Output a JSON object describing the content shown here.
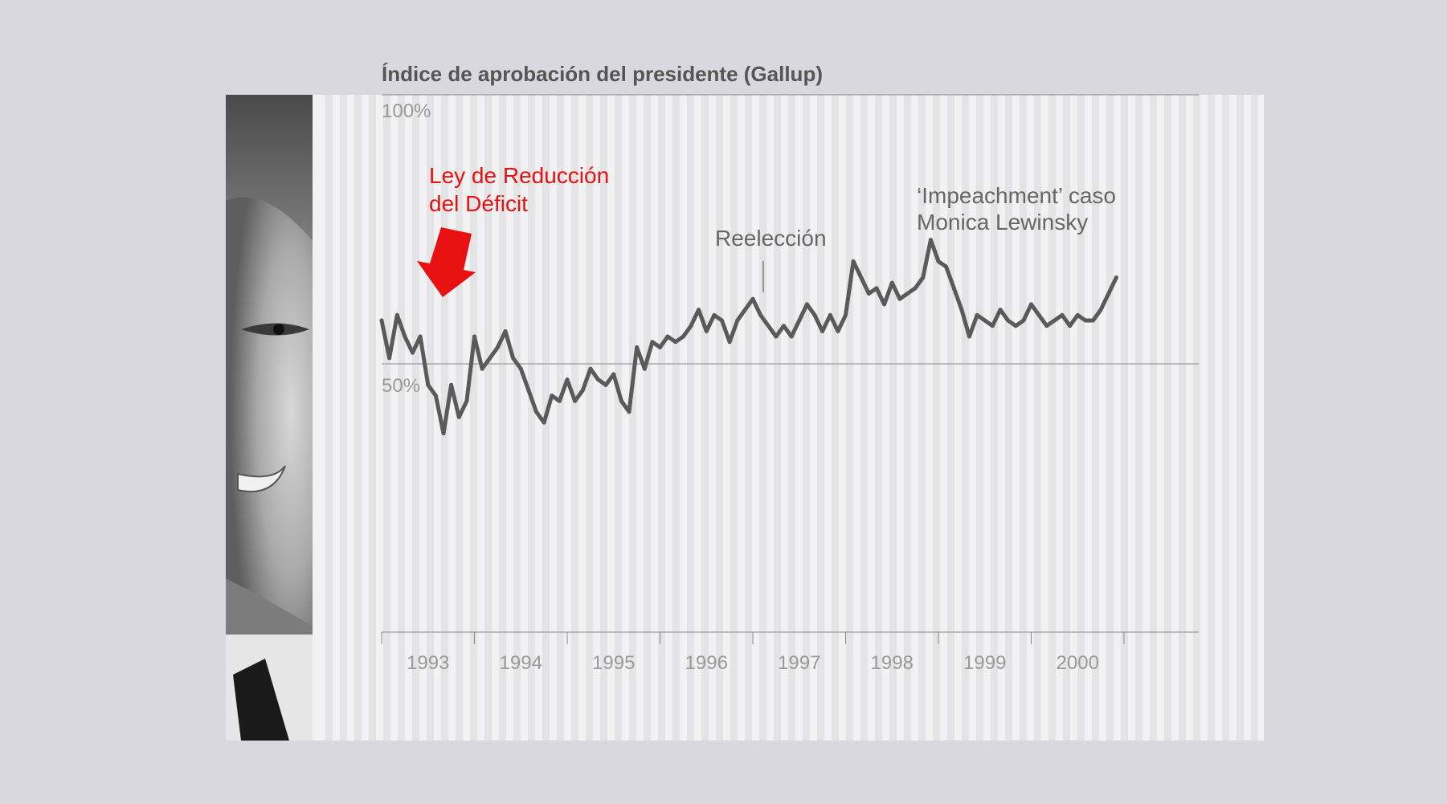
{
  "colors": {
    "background": "#d9d8de",
    "plot_background": "#f2f2f3",
    "stripe": "#e4e4e7",
    "line": "#5a5a5a",
    "highlight": "#e81010",
    "annotation": "#666666"
  },
  "chart_data": {
    "type": "line",
    "title": "Índice de aprobación del presidente (Gallup)",
    "xlabel": "",
    "ylabel": "",
    "ylim": [
      0,
      100
    ],
    "xlim": [
      "1993-01",
      "2001-12"
    ],
    "y_tick_labels": [
      {
        "value": 100,
        "label": "100%"
      },
      {
        "value": 50,
        "label": "50%"
      }
    ],
    "x_tick_labels": [
      "1993",
      "1994",
      "1995",
      "1996",
      "1997",
      "1998",
      "1999",
      "2000"
    ],
    "grid": "horizontal lines at 50% and 100%",
    "series": [
      {
        "values": [
          {
            "x": "1993-01",
            "y": 58
          },
          {
            "x": "1993-02",
            "y": 51
          },
          {
            "x": "1993-03",
            "y": 59
          },
          {
            "x": "1993-04",
            "y": 55
          },
          {
            "x": "1993-05",
            "y": 52
          },
          {
            "x": "1993-06",
            "y": 55
          },
          {
            "x": "1993-07",
            "y": 46
          },
          {
            "x": "1993-08",
            "y": 44
          },
          {
            "x": "1993-09",
            "y": 37
          },
          {
            "x": "1993-10",
            "y": 46
          },
          {
            "x": "1993-11",
            "y": 40
          },
          {
            "x": "1993-12",
            "y": 43
          },
          {
            "x": "1994-01",
            "y": 55
          },
          {
            "x": "1994-02",
            "y": 49
          },
          {
            "x": "1994-03",
            "y": 51
          },
          {
            "x": "1994-04",
            "y": 53
          },
          {
            "x": "1994-05",
            "y": 56
          },
          {
            "x": "1994-06",
            "y": 51
          },
          {
            "x": "1994-07",
            "y": 49
          },
          {
            "x": "1994-08",
            "y": 45
          },
          {
            "x": "1994-09",
            "y": 41
          },
          {
            "x": "1994-10",
            "y": 39
          },
          {
            "x": "1994-11",
            "y": 44
          },
          {
            "x": "1994-12",
            "y": 43
          },
          {
            "x": "1995-01",
            "y": 47
          },
          {
            "x": "1995-02",
            "y": 43
          },
          {
            "x": "1995-03",
            "y": 45
          },
          {
            "x": "1995-04",
            "y": 49
          },
          {
            "x": "1995-05",
            "y": 47
          },
          {
            "x": "1995-06",
            "y": 46
          },
          {
            "x": "1995-07",
            "y": 48
          },
          {
            "x": "1995-08",
            "y": 43
          },
          {
            "x": "1995-09",
            "y": 41
          },
          {
            "x": "1995-10",
            "y": 53
          },
          {
            "x": "1995-11",
            "y": 49
          },
          {
            "x": "1995-12",
            "y": 54
          },
          {
            "x": "1996-01",
            "y": 53
          },
          {
            "x": "1996-02",
            "y": 55
          },
          {
            "x": "1996-03",
            "y": 54
          },
          {
            "x": "1996-04",
            "y": 55
          },
          {
            "x": "1996-05",
            "y": 57
          },
          {
            "x": "1996-06",
            "y": 60
          },
          {
            "x": "1996-07",
            "y": 56
          },
          {
            "x": "1996-08",
            "y": 59
          },
          {
            "x": "1996-09",
            "y": 58
          },
          {
            "x": "1996-10",
            "y": 54
          },
          {
            "x": "1996-11",
            "y": 58
          },
          {
            "x": "1996-12",
            "y": 60
          },
          {
            "x": "1997-01",
            "y": 62
          },
          {
            "x": "1997-02",
            "y": 59
          },
          {
            "x": "1997-03",
            "y": 57
          },
          {
            "x": "1997-04",
            "y": 55
          },
          {
            "x": "1997-05",
            "y": 57
          },
          {
            "x": "1997-06",
            "y": 55
          },
          {
            "x": "1997-07",
            "y": 58
          },
          {
            "x": "1997-08",
            "y": 61
          },
          {
            "x": "1997-09",
            "y": 59
          },
          {
            "x": "1997-10",
            "y": 56
          },
          {
            "x": "1997-11",
            "y": 59
          },
          {
            "x": "1997-12",
            "y": 56
          },
          {
            "x": "1998-01",
            "y": 59
          },
          {
            "x": "1998-02",
            "y": 69
          },
          {
            "x": "1998-03",
            "y": 66
          },
          {
            "x": "1998-04",
            "y": 63
          },
          {
            "x": "1998-05",
            "y": 64
          },
          {
            "x": "1998-06",
            "y": 61
          },
          {
            "x": "1998-07",
            "y": 65
          },
          {
            "x": "1998-08",
            "y": 62
          },
          {
            "x": "1998-09",
            "y": 63
          },
          {
            "x": "1998-10",
            "y": 64
          },
          {
            "x": "1998-11",
            "y": 66
          },
          {
            "x": "1998-12",
            "y": 73
          },
          {
            "x": "1999-01",
            "y": 69
          },
          {
            "x": "1999-02",
            "y": 68
          },
          {
            "x": "1999-03",
            "y": 64
          },
          {
            "x": "1999-04",
            "y": 60
          },
          {
            "x": "1999-05",
            "y": 55
          },
          {
            "x": "1999-06",
            "y": 59
          },
          {
            "x": "1999-07",
            "y": 58
          },
          {
            "x": "1999-08",
            "y": 57
          },
          {
            "x": "1999-09",
            "y": 60
          },
          {
            "x": "1999-10",
            "y": 58
          },
          {
            "x": "1999-11",
            "y": 57
          },
          {
            "x": "1999-12",
            "y": 58
          },
          {
            "x": "2000-01",
            "y": 61
          },
          {
            "x": "2000-02",
            "y": 59
          },
          {
            "x": "2000-03",
            "y": 57
          },
          {
            "x": "2000-04",
            "y": 58
          },
          {
            "x": "2000-05",
            "y": 59
          },
          {
            "x": "2000-06",
            "y": 57
          },
          {
            "x": "2000-07",
            "y": 59
          },
          {
            "x": "2000-08",
            "y": 58
          },
          {
            "x": "2000-09",
            "y": 58
          },
          {
            "x": "2000-10",
            "y": 60
          },
          {
            "x": "2000-11",
            "y": 63
          },
          {
            "x": "2000-12",
            "y": 66
          }
        ]
      }
    ],
    "annotations": [
      {
        "name": "deficit-reduction-act",
        "lines": [
          "Ley de Reducción",
          "del Déficit"
        ],
        "x": "1993-08",
        "style": "highlight"
      },
      {
        "name": "reelection",
        "lines": [
          "Reelección"
        ],
        "x": "1996-11",
        "style": "normal"
      },
      {
        "name": "impeachment",
        "lines": [
          "‘Impeachment’ caso",
          "Monica Lewinsky"
        ],
        "x": "1998-12",
        "style": "normal"
      }
    ]
  }
}
